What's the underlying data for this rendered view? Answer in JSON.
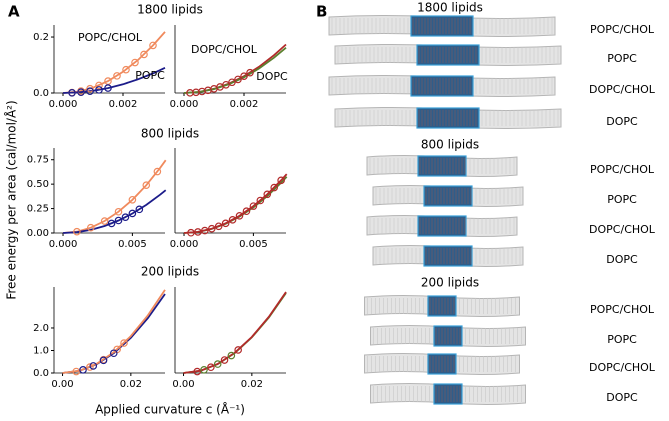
{
  "figure": {
    "panel_a": "A",
    "panel_b": "B",
    "ylabel": "Free energy per area (cal/mol/Å²)",
    "xlabel": "Applied curvature c (Å⁻¹)"
  },
  "chart_data": [
    {
      "type": "line",
      "title": "1800 lipids",
      "xlim": [
        -0.0003,
        0.0034
      ],
      "ylim": [
        0,
        0.243
      ],
      "xticks": [
        {
          "value": 0,
          "label": "0.000"
        },
        {
          "value": 0.002,
          "label": "0.002"
        }
      ],
      "yticks": [
        {
          "value": 0,
          "label": "0.0"
        },
        {
          "value": 0.2,
          "label": "0.2"
        }
      ],
      "series": [
        {
          "name": "POPC/CHOL",
          "color": "#f08a5d",
          "style": "line",
          "x": [
            0,
            0.0005,
            0.001,
            0.0015,
            0.002,
            0.0025,
            0.003,
            0.0034
          ],
          "values": [
            0,
            0.0047,
            0.0189,
            0.0425,
            0.0756,
            0.1181,
            0.1701,
            0.2185
          ]
        },
        {
          "name": "POPC",
          "color": "#1c1c8a",
          "style": "line",
          "x": [
            0,
            0.0005,
            0.001,
            0.0015,
            0.002,
            0.0025,
            0.003,
            0.0034
          ],
          "values": [
            0,
            0.002,
            0.0078,
            0.0176,
            0.0312,
            0.0488,
            0.0702,
            0.0902
          ]
        },
        {
          "color": "#f08a5d",
          "style": "markers",
          "x": [
            0.0003,
            0.0006,
            0.0009,
            0.0012,
            0.0015,
            0.0018,
            0.0021,
            0.0024,
            0.0027,
            0.003
          ],
          "values": [
            0.0017,
            0.0068,
            0.0153,
            0.0272,
            0.0425,
            0.0612,
            0.0833,
            0.1089,
            0.1378,
            0.1701
          ]
        },
        {
          "color": "#1c1c8a",
          "style": "markers",
          "x": [
            0.0003,
            0.0006,
            0.0009,
            0.0012,
            0.0015
          ],
          "values": [
            0.0007,
            0.0028,
            0.0063,
            0.0112,
            0.0176
          ]
        }
      ]
    },
    {
      "type": "line",
      "xlim": [
        -0.0003,
        0.0034
      ],
      "ylim": [
        0,
        0.243
      ],
      "xticks": [
        {
          "value": 0,
          "label": "0.000"
        },
        {
          "value": 0.002,
          "label": "0.002"
        }
      ],
      "series": [
        {
          "name": "DOPC/CHOL",
          "color": "#b22a2a",
          "style": "line",
          "x": [
            0,
            0.0005,
            0.001,
            0.0015,
            0.002,
            0.0025,
            0.003,
            0.0034
          ],
          "values": [
            0,
            0.00375,
            0.015,
            0.03375,
            0.06,
            0.09375,
            0.135,
            0.1734
          ]
        },
        {
          "name": "DOPC",
          "color": "#5b7f2e",
          "style": "line",
          "x": [
            0,
            0.0005,
            0.001,
            0.0015,
            0.002,
            0.0025,
            0.003,
            0.0034
          ],
          "values": [
            0,
            0.0035,
            0.014,
            0.0315,
            0.056,
            0.0875,
            0.126,
            0.1618
          ]
        },
        {
          "color": "#b22a2a",
          "style": "markers",
          "x": [
            0.0002,
            0.0004,
            0.0006,
            0.0008,
            0.001,
            0.0012,
            0.0014,
            0.0016,
            0.0018,
            0.002,
            0.0022
          ],
          "values": [
            0.0006,
            0.0024,
            0.0054,
            0.0096,
            0.015,
            0.0216,
            0.0294,
            0.0384,
            0.0486,
            0.06,
            0.0726
          ]
        }
      ]
    },
    {
      "type": "line",
      "title": "800 lipids",
      "xlim": [
        -0.00065,
        0.00735
      ],
      "ylim": [
        0,
        0.87
      ],
      "xticks": [
        {
          "value": 0,
          "label": "0.000"
        },
        {
          "value": 0.005,
          "label": "0.005"
        }
      ],
      "yticks": [
        {
          "value": 0,
          "label": "0.00"
        },
        {
          "value": 0.25,
          "label": "0.25"
        },
        {
          "value": 0.5,
          "label": "0.50"
        },
        {
          "value": 0.75,
          "label": "0.75"
        }
      ],
      "series": [
        {
          "color": "#f08a5d",
          "style": "line",
          "x": [
            0,
            0.001,
            0.002,
            0.003,
            0.004,
            0.005,
            0.006,
            0.007,
            0.0074
          ],
          "values": [
            0,
            0.0136,
            0.0544,
            0.1224,
            0.2176,
            0.34,
            0.4896,
            0.6664,
            0.7447
          ]
        },
        {
          "color": "#1c1c8a",
          "style": "line",
          "x": [
            0,
            0.001,
            0.002,
            0.003,
            0.004,
            0.005,
            0.006,
            0.007,
            0.0074
          ],
          "values": [
            0,
            0.008,
            0.032,
            0.072,
            0.128,
            0.2,
            0.288,
            0.392,
            0.4381
          ]
        },
        {
          "color": "#f08a5d",
          "style": "markers",
          "x": [
            0.001,
            0.002,
            0.003,
            0.004,
            0.005,
            0.006,
            0.0068
          ],
          "values": [
            0.0136,
            0.0544,
            0.1224,
            0.2176,
            0.34,
            0.4896,
            0.6289
          ]
        },
        {
          "color": "#1c1c8a",
          "style": "markers",
          "x": [
            0.0035,
            0.004,
            0.0045,
            0.005,
            0.0055
          ],
          "values": [
            0.098,
            0.128,
            0.162,
            0.2,
            0.242
          ]
        }
      ]
    },
    {
      "type": "line",
      "xlim": [
        -0.00065,
        0.00735
      ],
      "ylim": [
        0,
        0.87
      ],
      "xticks": [
        {
          "value": 0,
          "label": "0.000"
        },
        {
          "value": 0.005,
          "label": "0.005"
        }
      ],
      "series": [
        {
          "color": "#5b7f2e",
          "style": "line",
          "x": [
            0,
            0.001,
            0.002,
            0.003,
            0.004,
            0.005,
            0.006,
            0.007,
            0.0074
          ],
          "values": [
            0,
            0.0105,
            0.042,
            0.0945,
            0.168,
            0.2625,
            0.378,
            0.5145,
            0.575
          ]
        },
        {
          "color": "#b22a2a",
          "style": "line",
          "x": [
            0,
            0.001,
            0.002,
            0.003,
            0.004,
            0.005,
            0.006,
            0.007,
            0.0074
          ],
          "values": [
            0,
            0.011,
            0.044,
            0.099,
            0.176,
            0.275,
            0.396,
            0.539,
            0.6024
          ]
        },
        {
          "color": "#b22a2a",
          "style": "markers",
          "x": [
            0.0005,
            0.001,
            0.0015,
            0.002,
            0.0025,
            0.003,
            0.0035,
            0.004,
            0.0045,
            0.005,
            0.0055,
            0.006,
            0.0065,
            0.007
          ],
          "values": [
            0.00275,
            0.011,
            0.02475,
            0.044,
            0.06875,
            0.099,
            0.13475,
            0.176,
            0.22275,
            0.275,
            0.33275,
            0.396,
            0.46475,
            0.539
          ]
        }
      ]
    },
    {
      "type": "line",
      "title": "200 lipids",
      "xlim": [
        -0.0025,
        0.03
      ],
      "ylim": [
        0,
        3.82
      ],
      "xticks": [
        {
          "value": 0,
          "label": "0.00"
        },
        {
          "value": 0.02,
          "label": "0.02"
        }
      ],
      "yticks": [
        {
          "value": 0,
          "label": "0.0"
        },
        {
          "value": 1,
          "label": "1.0"
        },
        {
          "value": 2,
          "label": "2.0"
        }
      ],
      "series": [
        {
          "color": "#1c1c8a",
          "style": "line",
          "x": [
            0,
            0.005,
            0.01,
            0.015,
            0.02,
            0.025,
            0.03
          ],
          "values": [
            0,
            0.0975,
            0.39,
            0.8775,
            1.56,
            2.4375,
            3.51
          ]
        },
        {
          "color": "#f08a5d",
          "style": "line",
          "x": [
            0,
            0.005,
            0.01,
            0.015,
            0.02,
            0.025,
            0.03
          ],
          "values": [
            0,
            0.1025,
            0.41,
            0.9225,
            1.64,
            2.5625,
            3.69
          ]
        },
        {
          "color": "#f08a5d",
          "style": "markers",
          "x": [
            0.004,
            0.008,
            0.012,
            0.016,
            0.018
          ],
          "values": [
            0.0656,
            0.2624,
            0.5904,
            1.0496,
            1.3284
          ]
        },
        {
          "color": "#1c1c8a",
          "style": "markers",
          "x": [
            0.006,
            0.009,
            0.012,
            0.015
          ],
          "values": [
            0.1404,
            0.3159,
            0.5616,
            0.8775
          ]
        }
      ]
    },
    {
      "type": "line",
      "xlim": [
        -0.0025,
        0.03
      ],
      "ylim": [
        0,
        3.82
      ],
      "xticks": [
        {
          "value": 0,
          "label": "0.00"
        },
        {
          "value": 0.02,
          "label": "0.02"
        }
      ],
      "series": [
        {
          "color": "#5b7f2e",
          "style": "line",
          "x": [
            0,
            0.005,
            0.01,
            0.015,
            0.02,
            0.025,
            0.03
          ],
          "values": [
            0,
            0.09875,
            0.395,
            0.88875,
            1.58,
            2.46875,
            3.555
          ]
        },
        {
          "color": "#b22a2a",
          "style": "line",
          "x": [
            0,
            0.005,
            0.01,
            0.015,
            0.02,
            0.025,
            0.03
          ],
          "values": [
            0,
            0.1,
            0.4,
            0.9,
            1.6,
            2.5,
            3.6
          ]
        },
        {
          "color": "#b22a2a",
          "style": "markers",
          "x": [
            0.004,
            0.008,
            0.012,
            0.016
          ],
          "values": [
            0.064,
            0.256,
            0.576,
            1.024
          ]
        },
        {
          "color": "#5b7f2e",
          "style": "markers",
          "x": [
            0.006,
            0.01,
            0.014
          ],
          "values": [
            0.1422,
            0.395,
            0.7742
          ]
        }
      ]
    }
  ],
  "panel_b": {
    "groups": [
      {
        "title": "1800 lipids",
        "rows": [
          {
            "label": "POPC/CHOL",
            "color": "#f08a5d"
          },
          {
            "label": "POPC",
            "color": "#1c1c8a"
          },
          {
            "label": "DOPC/CHOL",
            "color": "#b22a2a"
          },
          {
            "label": "DOPC",
            "color": "#5b7f2e"
          }
        ]
      },
      {
        "title": "800 lipids",
        "rows": [
          {
            "label": "POPC/CHOL",
            "color": "#f08a5d"
          },
          {
            "label": "POPC",
            "color": "#1c1c8a"
          },
          {
            "label": "DOPC/CHOL",
            "color": "#b22a2a"
          },
          {
            "label": "DOPC",
            "color": "#5b7f2e"
          }
        ]
      },
      {
        "title": "200 lipids",
        "rows": [
          {
            "label": "POPC/CHOL",
            "color": "#f08a5d"
          },
          {
            "label": "POPC",
            "color": "#1c1c8a"
          },
          {
            "label": "DOPC/CHOL",
            "color": "#b22a2a"
          },
          {
            "label": "DOPC",
            "color": "#5b7f2e"
          }
        ]
      }
    ]
  }
}
